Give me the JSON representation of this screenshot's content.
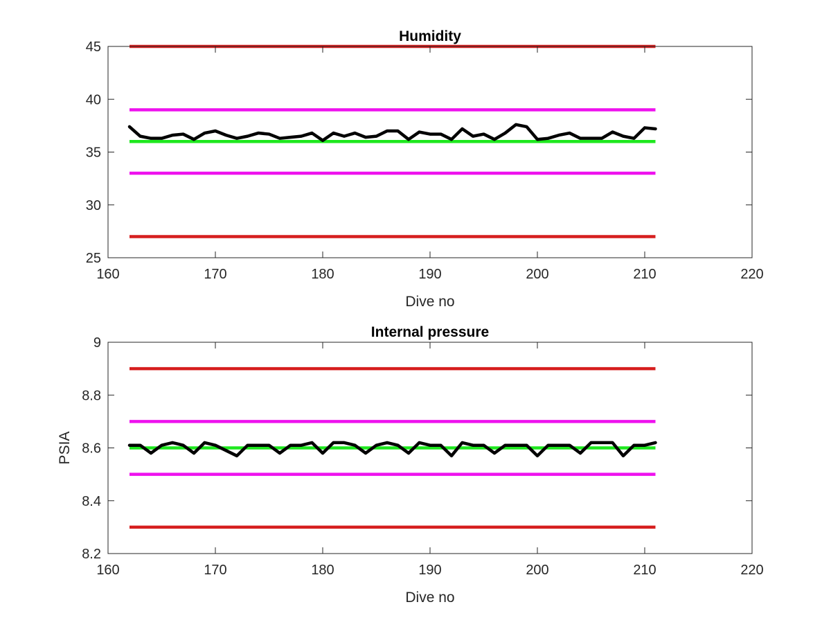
{
  "colors": {
    "limit_red": "#d61f1f",
    "limit_magenta": "#ee11ee",
    "nominal_green": "#1ee81e",
    "data_black": "#000000",
    "axis": "#262626"
  },
  "chart_data": [
    {
      "type": "line",
      "title": "Humidity",
      "xlabel": "Dive no",
      "ylabel": "",
      "xlim": [
        160,
        220
      ],
      "ylim": [
        25,
        45
      ],
      "xticks": [
        160,
        170,
        180,
        190,
        200,
        210,
        220
      ],
      "yticks": [
        25,
        30,
        35,
        40,
        45
      ],
      "grid": false,
      "reference_lines": [
        {
          "y": 45,
          "x": [
            162,
            211
          ],
          "color": "red"
        },
        {
          "y": 39,
          "x": [
            162,
            211
          ],
          "color": "magenta"
        },
        {
          "y": 36,
          "x": [
            162,
            211
          ],
          "color": "green"
        },
        {
          "y": 33,
          "x": [
            162,
            211
          ],
          "color": "magenta"
        },
        {
          "y": 27,
          "x": [
            162,
            211
          ],
          "color": "red"
        }
      ],
      "series": [
        {
          "color": "black",
          "x": [
            162,
            163,
            164,
            165,
            166,
            167,
            168,
            169,
            170,
            171,
            172,
            173,
            174,
            175,
            176,
            177,
            178,
            179,
            180,
            181,
            182,
            183,
            184,
            185,
            186,
            187,
            188,
            189,
            190,
            191,
            192,
            193,
            194,
            195,
            196,
            197,
            198,
            199,
            200,
            201,
            202,
            203,
            204,
            205,
            206,
            207,
            208,
            209,
            210,
            211
          ],
          "values": [
            37.4,
            36.5,
            36.3,
            36.3,
            36.6,
            36.7,
            36.2,
            36.8,
            37.0,
            36.6,
            36.3,
            36.5,
            36.8,
            36.7,
            36.3,
            36.4,
            36.5,
            36.8,
            36.1,
            36.8,
            36.5,
            36.8,
            36.4,
            36.5,
            37.0,
            37.0,
            36.2,
            36.9,
            36.7,
            36.7,
            36.2,
            37.2,
            36.5,
            36.7,
            36.2,
            36.8,
            37.6,
            37.4,
            36.2,
            36.3,
            36.6,
            36.8,
            36.3,
            36.3,
            36.3,
            36.9,
            36.5,
            36.3,
            37.3,
            37.2
          ]
        }
      ]
    },
    {
      "type": "line",
      "title": "Internal pressure",
      "xlabel": "Dive no",
      "ylabel": "PSIA",
      "xlim": [
        160,
        220
      ],
      "ylim": [
        8.2,
        9
      ],
      "xticks": [
        160,
        170,
        180,
        190,
        200,
        210,
        220
      ],
      "yticks": [
        8.2,
        8.4,
        8.6,
        8.8,
        9
      ],
      "grid": false,
      "reference_lines": [
        {
          "y": 8.9,
          "x": [
            162,
            211
          ],
          "color": "red"
        },
        {
          "y": 8.7,
          "x": [
            162,
            211
          ],
          "color": "magenta"
        },
        {
          "y": 8.6,
          "x": [
            162,
            211
          ],
          "color": "green"
        },
        {
          "y": 8.5,
          "x": [
            162,
            211
          ],
          "color": "magenta"
        },
        {
          "y": 8.3,
          "x": [
            162,
            211
          ],
          "color": "red"
        }
      ],
      "series": [
        {
          "color": "black",
          "x": [
            162,
            163,
            164,
            165,
            166,
            167,
            168,
            169,
            170,
            171,
            172,
            173,
            174,
            175,
            176,
            177,
            178,
            179,
            180,
            181,
            182,
            183,
            184,
            185,
            186,
            187,
            188,
            189,
            190,
            191,
            192,
            193,
            194,
            195,
            196,
            197,
            198,
            199,
            200,
            201,
            202,
            203,
            204,
            205,
            206,
            207,
            208,
            209,
            210,
            211
          ],
          "values": [
            8.61,
            8.61,
            8.58,
            8.61,
            8.62,
            8.61,
            8.58,
            8.62,
            8.61,
            8.59,
            8.57,
            8.61,
            8.61,
            8.61,
            8.58,
            8.61,
            8.61,
            8.62,
            8.58,
            8.62,
            8.62,
            8.61,
            8.58,
            8.61,
            8.62,
            8.61,
            8.58,
            8.62,
            8.61,
            8.61,
            8.57,
            8.62,
            8.61,
            8.61,
            8.58,
            8.61,
            8.61,
            8.61,
            8.57,
            8.61,
            8.61,
            8.61,
            8.58,
            8.62,
            8.62,
            8.62,
            8.57,
            8.61,
            8.61,
            8.62
          ]
        }
      ]
    }
  ]
}
